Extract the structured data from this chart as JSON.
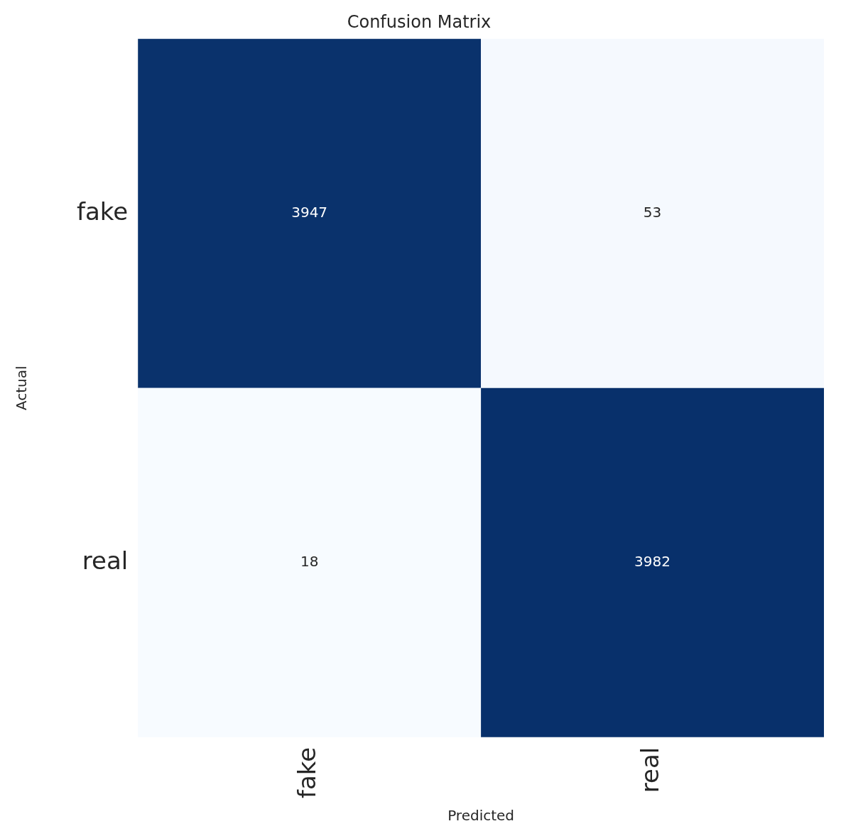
{
  "chart_data": {
    "type": "heatmap",
    "title": "Confusion Matrix",
    "xlabel": "Predicted",
    "ylabel": "Actual",
    "categories": [
      "fake",
      "real"
    ],
    "y_categories": [
      "fake",
      "real"
    ],
    "cells": [
      [
        3947,
        53
      ],
      [
        18,
        3982
      ]
    ],
    "data_labels": true
  }
}
